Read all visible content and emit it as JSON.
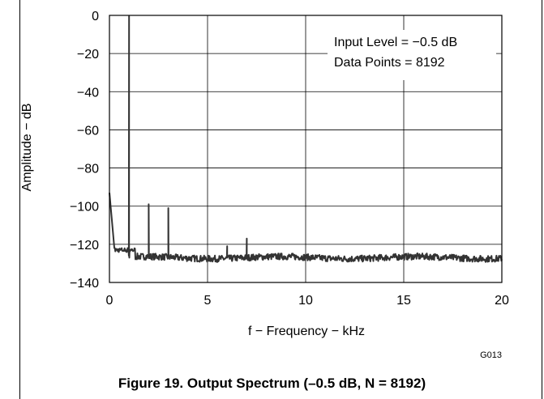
{
  "figure": {
    "caption": "Figure 19. Output Spectrum (–0.5 dB, N = 8192)",
    "code": "G013"
  },
  "chart_data": {
    "type": "line",
    "xlabel": "f − Frequency − kHz",
    "ylabel": "Amplitude − dB",
    "xlim": [
      0,
      20
    ],
    "ylim": [
      -140,
      0
    ],
    "x_ticks": [
      0,
      5,
      10,
      15,
      20
    ],
    "x_tick_labels": [
      "0",
      "5",
      "10",
      "15",
      "20"
    ],
    "y_ticks": [
      0,
      -20,
      -40,
      -60,
      -80,
      -100,
      -120,
      -140
    ],
    "y_tick_labels": [
      "0",
      "−20",
      "−40",
      "−60",
      "−80",
      "−100",
      "−120",
      "−140"
    ],
    "grid": true,
    "annotations": [
      "Input Level = −0.5 dB",
      "Data Points = 8192"
    ],
    "noise_floor_db": -127,
    "peaks": [
      {
        "x": 0.0,
        "y": -93
      },
      {
        "x": 1.0,
        "y": -0.5
      },
      {
        "x": 2.0,
        "y": -99
      },
      {
        "x": 3.0,
        "y": -101
      },
      {
        "x": 6.0,
        "y": -121
      },
      {
        "x": 7.0,
        "y": -117
      }
    ],
    "series_color": "#333333"
  }
}
